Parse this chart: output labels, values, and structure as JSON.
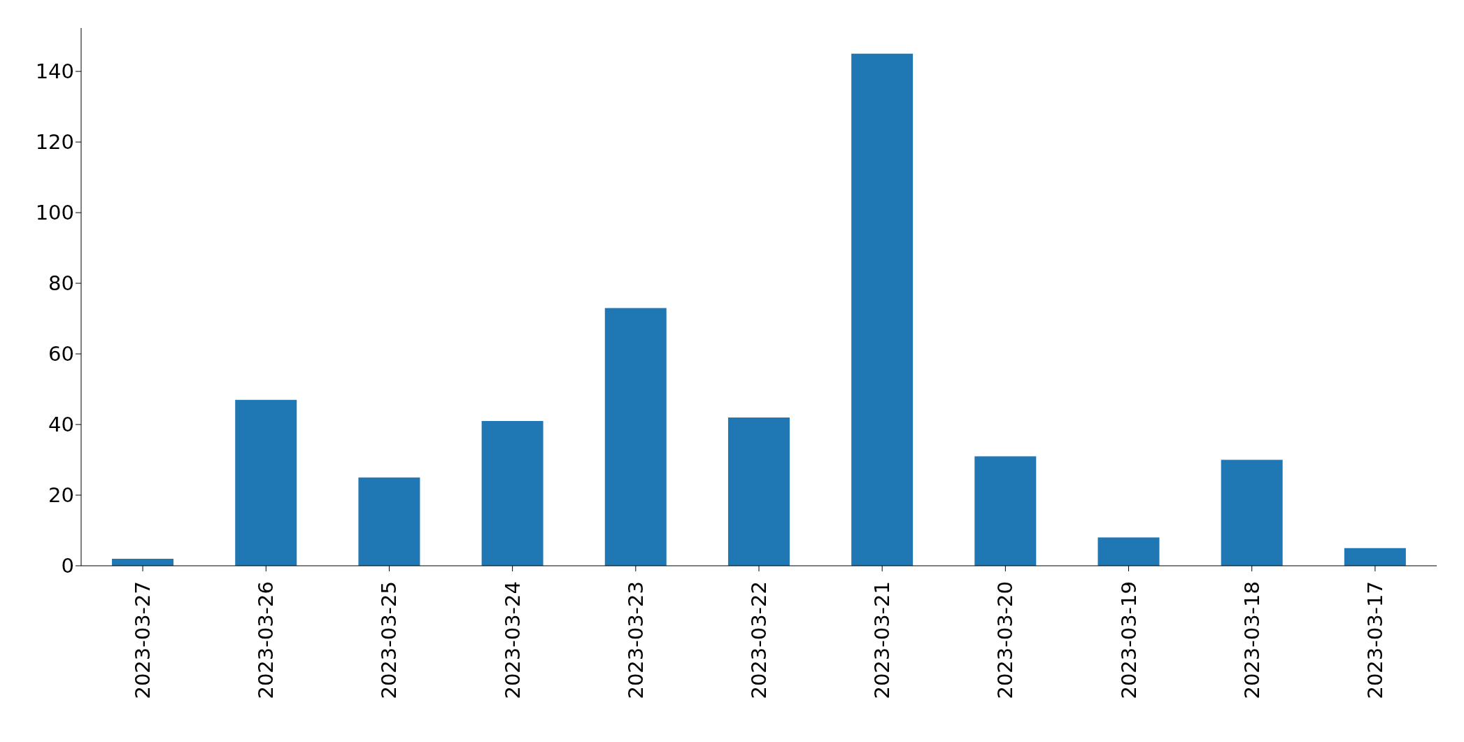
{
  "chart_data": {
    "type": "bar",
    "categories": [
      "2023-03-27",
      "2023-03-26",
      "2023-03-25",
      "2023-03-24",
      "2023-03-23",
      "2023-03-22",
      "2023-03-21",
      "2023-03-20",
      "2023-03-19",
      "2023-03-18",
      "2023-03-17"
    ],
    "values": [
      2,
      47,
      25,
      41,
      73,
      42,
      145,
      31,
      8,
      30,
      5
    ],
    "color": "#1f77b4",
    "ylim": [
      0,
      152.3
    ],
    "yticks": [
      0,
      20,
      40,
      60,
      80,
      100,
      120,
      140
    ],
    "grid": false,
    "legend": false
  }
}
